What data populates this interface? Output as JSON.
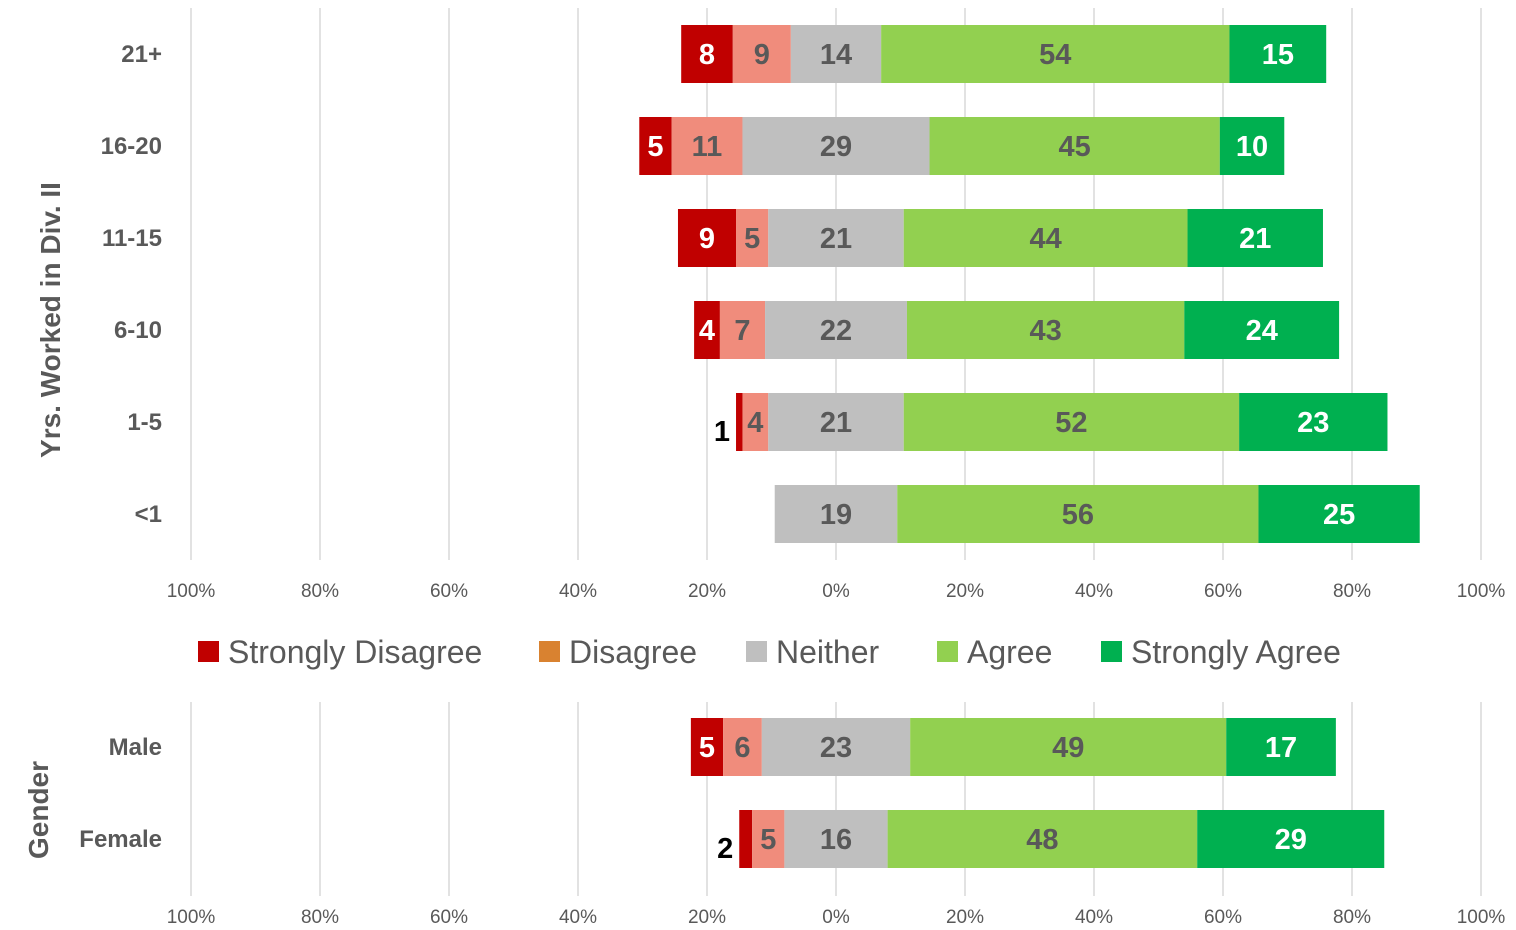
{
  "chart_data": [
    {
      "type": "bar",
      "orientation": "horizontal",
      "stacked": "diverging",
      "ylabel": "Yrs. Worked in Div. II",
      "categories": [
        "21+",
        "16-20",
        "11-15",
        "6-10",
        "1-5",
        "<1"
      ],
      "series": [
        {
          "name": "Strongly Disagree",
          "values": [
            8,
            5,
            9,
            4,
            1,
            0
          ],
          "labels": [
            "8",
            "5",
            "9",
            "4",
            "1",
            ""
          ]
        },
        {
          "name": "Disagree",
          "values": [
            9,
            11,
            5,
            7,
            4,
            0
          ],
          "labels": [
            "9",
            "11",
            "5",
            "7",
            "4",
            ""
          ]
        },
        {
          "name": "Neither",
          "values": [
            14,
            29,
            21,
            22,
            21,
            19
          ],
          "labels": [
            "14",
            "29",
            "21",
            "22",
            "21",
            "19"
          ]
        },
        {
          "name": "Agree",
          "values": [
            54,
            45,
            44,
            43,
            52,
            56
          ],
          "labels": [
            "54",
            "45",
            "44",
            "43",
            "52",
            "56"
          ]
        },
        {
          "name": "Strongly Agree",
          "values": [
            15,
            10,
            21,
            24,
            23,
            25
          ],
          "labels": [
            "15",
            "10",
            "21",
            "24",
            "23",
            "25"
          ]
        }
      ],
      "x_ticks": [
        "100%",
        "80%",
        "60%",
        "40%",
        "20%",
        "0%",
        "20%",
        "40%",
        "60%",
        "80%",
        "100%"
      ],
      "xlim": [
        -100,
        100
      ],
      "grid": "vertical"
    },
    {
      "type": "bar",
      "orientation": "horizontal",
      "stacked": "diverging",
      "ylabel": "Gender",
      "categories": [
        "Male",
        "Female"
      ],
      "series": [
        {
          "name": "Strongly Disagree",
          "values": [
            5,
            2
          ],
          "labels": [
            "5",
            "2"
          ]
        },
        {
          "name": "Disagree",
          "values": [
            6,
            5
          ],
          "labels": [
            "6",
            "5"
          ]
        },
        {
          "name": "Neither",
          "values": [
            23,
            16
          ],
          "labels": [
            "23",
            "16"
          ]
        },
        {
          "name": "Agree",
          "values": [
            49,
            48
          ],
          "labels": [
            "49",
            "48"
          ]
        },
        {
          "name": "Strongly Agree",
          "values": [
            17,
            29
          ],
          "labels": [
            "17",
            "29"
          ]
        }
      ],
      "x_ticks": [
        "100%",
        "80%",
        "60%",
        "40%",
        "20%",
        "0%",
        "20%",
        "40%",
        "60%",
        "80%",
        "100%"
      ],
      "xlim": [
        -100,
        100
      ],
      "grid": "vertical"
    }
  ],
  "legend": {
    "placement": "between charts",
    "items": [
      {
        "name": "Strongly Disagree",
        "color": "#c00000"
      },
      {
        "name": "Disagree",
        "color": "#d98230"
      },
      {
        "name": "Neither",
        "color": "#bfbfbf"
      },
      {
        "name": "Agree",
        "color": "#92d050"
      },
      {
        "name": "Strongly Agree",
        "color": "#00b050"
      }
    ]
  },
  "colors": {
    "strongly_disagree": "#c00000",
    "disagree": "#f08c7c",
    "neither": "#bfbfbf",
    "agree": "#92d050",
    "strongly_agree": "#00b050",
    "gridline": "#d9d9d9",
    "text": "#595959"
  }
}
